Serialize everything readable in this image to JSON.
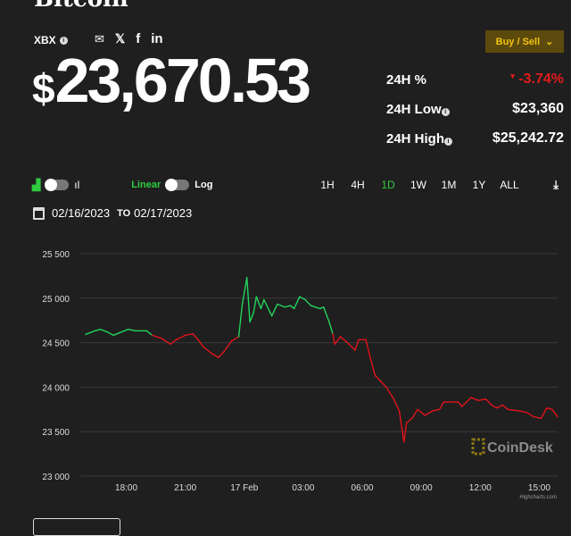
{
  "page": {
    "title": "Bitcoin",
    "ticker": "XBX",
    "info_icon": "info-icon"
  },
  "share": {
    "icons": [
      "mail-icon",
      "twitter-icon",
      "facebook-icon",
      "linkedin-icon"
    ],
    "mail": "✉",
    "twitter": "🐦",
    "facebook": "f",
    "linkedin": "in"
  },
  "price": {
    "currency": "$",
    "value": "23,670.53"
  },
  "buy_sell": {
    "label": "Buy / Sell",
    "chevron": "⌄",
    "bg": "#5c4a0d",
    "fg": "#f1c40f"
  },
  "stats": [
    {
      "label": "24H %",
      "value": "-3.74%",
      "arrow": "▾",
      "color": "#e31b1b"
    },
    {
      "label": "24H Low",
      "value": "$23,360"
    },
    {
      "label": "24H High",
      "value": "$25,242.72"
    }
  ],
  "controls": {
    "linear": "Linear",
    "log": "Log",
    "ranges": [
      "1H",
      "4H",
      "1D",
      "1W",
      "1M",
      "1Y",
      "ALL"
    ],
    "active_range": "1D",
    "accent": "#2ecc40"
  },
  "date_range": {
    "from": "02/16/2023",
    "to_label": "TO",
    "to": "02/17/2023"
  },
  "chart_data": {
    "type": "line",
    "ylim": [
      23000,
      25500
    ],
    "yticks": [
      "25 500",
      "25 000",
      "24 500",
      "24 000",
      "23 500",
      "23 000"
    ],
    "ytick_values": [
      25500,
      25000,
      24500,
      24000,
      23500,
      23000
    ],
    "xticks": [
      "18:00",
      "21:00",
      "17 Feb",
      "03:00",
      "06:00",
      "09:00",
      "12:00",
      "15:00"
    ],
    "xtick_times": [
      "2023-02-16T18:00",
      "2023-02-16T21:00",
      "2023-02-17T00:00",
      "2023-02-17T03:00",
      "2023-02-17T06:00",
      "2023-02-17T09:00",
      "2023-02-17T12:00",
      "2023-02-17T15:00"
    ],
    "xlim": [
      "2023-02-16T15:56",
      "2023-02-17T15:56"
    ],
    "grid": true,
    "up_color": "#22d35b",
    "down_color": "#e0141b",
    "color_threshold": 24600,
    "watermark": "CoinDesk",
    "credit": "Highcharts.com",
    "points": [
      [
        "2023-02-16T15:56",
        24593
      ],
      [
        "2023-02-16T16:24",
        24633
      ],
      [
        "2023-02-16T16:41",
        24650
      ],
      [
        "2023-02-16T17:04",
        24617
      ],
      [
        "2023-02-16T17:21",
        24583
      ],
      [
        "2023-02-16T17:43",
        24617
      ],
      [
        "2023-02-16T18:06",
        24650
      ],
      [
        "2023-02-16T18:28",
        24633
      ],
      [
        "2023-02-16T19:02",
        24633
      ],
      [
        "2023-02-16T19:19",
        24583
      ],
      [
        "2023-02-16T19:47",
        24550
      ],
      [
        "2023-02-16T20:15",
        24483
      ],
      [
        "2023-02-16T20:32",
        24533
      ],
      [
        "2023-02-16T21:00",
        24583
      ],
      [
        "2023-02-16T21:23",
        24600
      ],
      [
        "2023-02-16T21:39",
        24533
      ],
      [
        "2023-02-16T21:56",
        24450
      ],
      [
        "2023-02-16T22:19",
        24383
      ],
      [
        "2023-02-16T22:41",
        24333
      ],
      [
        "2023-02-16T22:58",
        24400
      ],
      [
        "2023-02-16T23:21",
        24517
      ],
      [
        "2023-02-16T23:43",
        24567
      ],
      [
        "2023-02-16T23:54",
        24933
      ],
      [
        "2023-02-17T00:08",
        25233
      ],
      [
        "2023-02-17T00:17",
        24733
      ],
      [
        "2023-02-17T00:28",
        24833
      ],
      [
        "2023-02-17T00:37",
        25017
      ],
      [
        "2023-02-17T00:51",
        24883
      ],
      [
        "2023-02-17T01:00",
        24983
      ],
      [
        "2023-02-17T01:24",
        24800
      ],
      [
        "2023-02-17T01:41",
        24933
      ],
      [
        "2023-02-17T02:04",
        24900
      ],
      [
        "2023-02-17T02:21",
        24917
      ],
      [
        "2023-02-17T02:32",
        24883
      ],
      [
        "2023-02-17T02:49",
        25017
      ],
      [
        "2023-02-17T03:06",
        24983
      ],
      [
        "2023-02-17T03:23",
        24917
      ],
      [
        "2023-02-17T03:51",
        24883
      ],
      [
        "2023-02-17T04:02",
        24900
      ],
      [
        "2023-02-17T04:19",
        24733
      ],
      [
        "2023-02-17T04:30",
        24600
      ],
      [
        "2023-02-17T04:36",
        24483
      ],
      [
        "2023-02-17T04:53",
        24567
      ],
      [
        "2023-02-17T05:15",
        24500
      ],
      [
        "2023-02-17T05:38",
        24417
      ],
      [
        "2023-02-17T05:49",
        24533
      ],
      [
        "2023-02-17T06:11",
        24533
      ],
      [
        "2023-02-17T06:23",
        24350
      ],
      [
        "2023-02-17T06:39",
        24133
      ],
      [
        "2023-02-17T06:56",
        24067
      ],
      [
        "2023-02-17T07:13",
        24000
      ],
      [
        "2023-02-17T07:36",
        23867
      ],
      [
        "2023-02-17T07:53",
        23733
      ],
      [
        "2023-02-17T08:07",
        23383
      ],
      [
        "2023-02-17T08:15",
        23600
      ],
      [
        "2023-02-17T08:32",
        23650
      ],
      [
        "2023-02-17T08:49",
        23750
      ],
      [
        "2023-02-17T09:11",
        23683
      ],
      [
        "2023-02-17T09:34",
        23733
      ],
      [
        "2023-02-17T09:56",
        23750
      ],
      [
        "2023-02-17T10:08",
        23833
      ],
      [
        "2023-02-17T10:30",
        23833
      ],
      [
        "2023-02-17T10:53",
        23833
      ],
      [
        "2023-02-17T11:04",
        23783
      ],
      [
        "2023-02-17T11:32",
        23883
      ],
      [
        "2023-02-17T11:54",
        23850
      ],
      [
        "2023-02-17T12:17",
        23867
      ],
      [
        "2023-02-17T12:34",
        23800
      ],
      [
        "2023-02-17T12:51",
        23767
      ],
      [
        "2023-02-17T13:08",
        23800
      ],
      [
        "2023-02-17T13:24",
        23750
      ],
      [
        "2023-02-17T13:58",
        23733
      ],
      [
        "2023-02-17T14:21",
        23717
      ],
      [
        "2023-02-17T14:43",
        23667
      ],
      [
        "2023-02-17T15:06",
        23650
      ],
      [
        "2023-02-17T15:23",
        23767
      ],
      [
        "2023-02-17T15:39",
        23750
      ],
      [
        "2023-02-17T15:56",
        23667
      ]
    ]
  }
}
